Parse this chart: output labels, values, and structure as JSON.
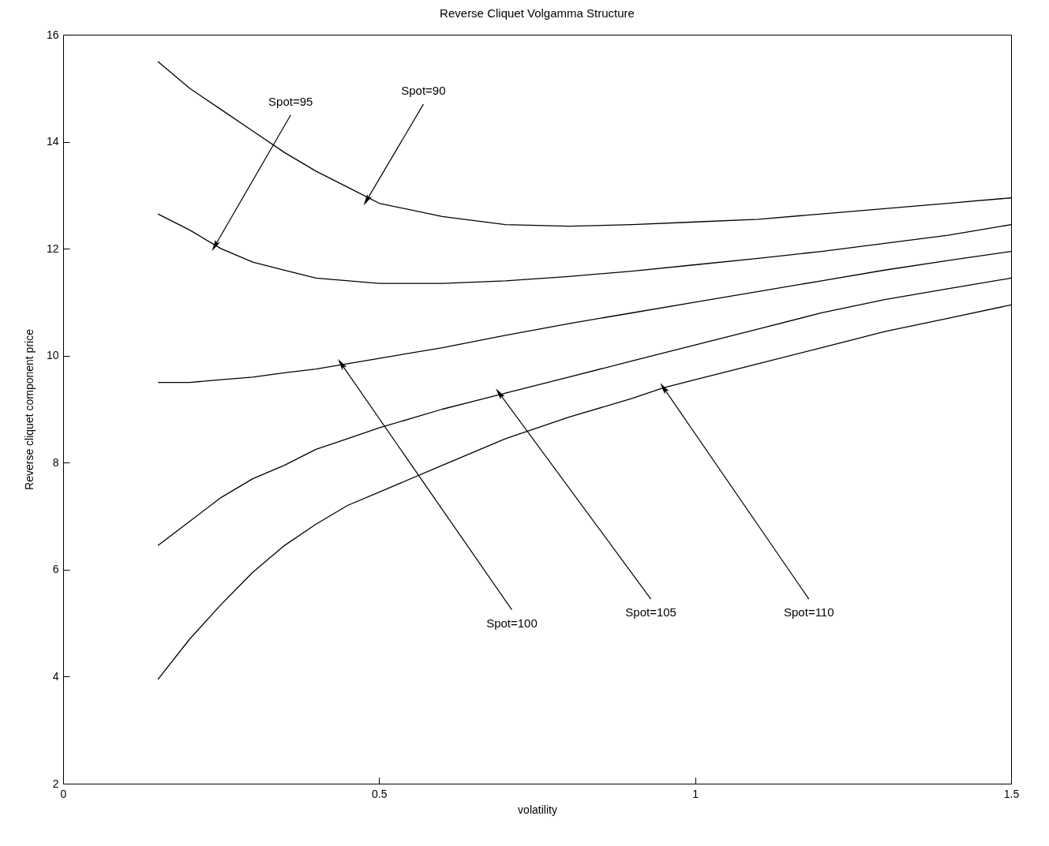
{
  "chart_data": {
    "type": "line",
    "title": "Reverse Cliquet Volgamma Structure",
    "xlabel": "volatility",
    "ylabel": "Reverse cliquet component price",
    "xlim": [
      0,
      1.5
    ],
    "xticks": [
      0,
      0.5,
      1,
      1.5
    ],
    "ylim": [
      2,
      16
    ],
    "yticks": [
      2,
      4,
      6,
      8,
      10,
      12,
      14,
      16
    ],
    "grid": false,
    "legend": false,
    "marker": "none",
    "line_style": "solid",
    "series": [
      {
        "color": "#000000",
        "x": [
          0.15,
          0.2,
          0.25,
          0.3,
          0.35,
          0.4,
          0.45,
          0.5,
          0.6,
          0.7,
          0.8,
          0.9,
          1.0,
          1.1,
          1.2,
          1.3,
          1.4,
          1.5
        ],
        "values": [
          15.5,
          15.0,
          14.6,
          14.2,
          13.8,
          13.45,
          13.15,
          12.85,
          12.6,
          12.45,
          12.42,
          12.45,
          12.5,
          12.55,
          12.65,
          12.75,
          12.85,
          12.95
        ]
      },
      {
        "color": "#000000",
        "x": [
          0.15,
          0.2,
          0.25,
          0.3,
          0.35,
          0.4,
          0.5,
          0.6,
          0.7,
          0.8,
          0.9,
          1.0,
          1.1,
          1.2,
          1.3,
          1.4,
          1.5
        ],
        "values": [
          12.65,
          12.35,
          12.0,
          11.75,
          11.6,
          11.45,
          11.35,
          11.35,
          11.4,
          11.48,
          11.58,
          11.7,
          11.82,
          11.95,
          12.1,
          12.25,
          12.45
        ]
      },
      {
        "color": "#000000",
        "x": [
          0.15,
          0.2,
          0.25,
          0.3,
          0.35,
          0.4,
          0.45,
          0.5,
          0.6,
          0.7,
          0.8,
          0.9,
          1.0,
          1.1,
          1.2,
          1.3,
          1.4,
          1.5
        ],
        "values": [
          9.5,
          9.5,
          9.55,
          9.6,
          9.68,
          9.75,
          9.85,
          9.95,
          10.15,
          10.38,
          10.6,
          10.8,
          11.0,
          11.2,
          11.4,
          11.6,
          11.78,
          11.95
        ]
      },
      {
        "color": "#000000",
        "x": [
          0.15,
          0.2,
          0.25,
          0.3,
          0.35,
          0.4,
          0.45,
          0.5,
          0.6,
          0.7,
          0.8,
          0.9,
          1.0,
          1.1,
          1.2,
          1.3,
          1.4,
          1.5
        ],
        "values": [
          6.45,
          6.9,
          7.35,
          7.7,
          7.95,
          8.25,
          8.45,
          8.65,
          9.0,
          9.3,
          9.6,
          9.9,
          10.2,
          10.5,
          10.8,
          11.05,
          11.25,
          11.45
        ]
      },
      {
        "color": "#000000",
        "x": [
          0.15,
          0.2,
          0.25,
          0.3,
          0.35,
          0.4,
          0.45,
          0.5,
          0.6,
          0.7,
          0.8,
          0.9,
          0.95,
          1.0,
          1.1,
          1.2,
          1.3,
          1.4,
          1.5
        ],
        "values": [
          3.95,
          4.7,
          5.35,
          5.95,
          6.45,
          6.85,
          7.2,
          7.45,
          7.95,
          8.45,
          8.85,
          9.2,
          9.4,
          9.55,
          9.85,
          10.15,
          10.45,
          10.7,
          10.95
        ]
      }
    ],
    "annotations": [
      {
        "text": "Spot=95",
        "x": 0.24,
        "y": 12.05
      },
      {
        "text": "Spot=90",
        "x": 0.48,
        "y": 12.9
      },
      {
        "text": "Spot=100",
        "x": 0.44,
        "y": 9.85
      },
      {
        "text": "Spot=105",
        "x": 0.69,
        "y": 9.3
      },
      {
        "text": "Spot=110",
        "x": 0.95,
        "y": 9.4
      }
    ]
  }
}
